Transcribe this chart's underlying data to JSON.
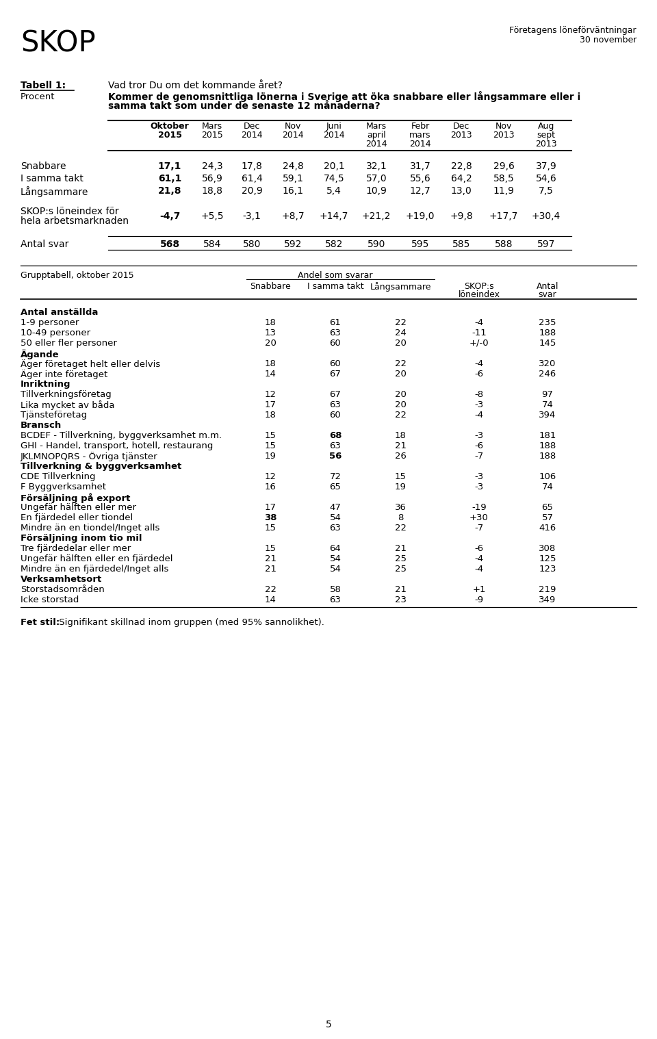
{
  "title_left": "SKOP",
  "title_right_line1": "Företagens löneförväntningar",
  "title_right_line2": "30 november",
  "tabell_label": "Tabell 1:",
  "procent_label": "Procent",
  "question_line1": "Vad tror Du om det kommande året?",
  "question_line2": "Kommer de genomsnittliga lönerna i Sverige att öka snabbare eller långsammare eller i",
  "question_line3": "samma takt som under de senaste 12 månaderna?",
  "row_labels": [
    "Snabbare",
    "I samma takt",
    "Långsammare"
  ],
  "table1_data": [
    [
      "17,1",
      "24,3",
      "17,8",
      "24,8",
      "20,1",
      "32,1",
      "31,7",
      "22,8",
      "29,6",
      "37,9"
    ],
    [
      "61,1",
      "56,9",
      "61,4",
      "59,1",
      "74,5",
      "57,0",
      "55,6",
      "64,2",
      "58,5",
      "54,6"
    ],
    [
      "21,8",
      "18,8",
      "20,9",
      "16,1",
      "5,4",
      "10,9",
      "12,7",
      "13,0",
      "11,9",
      "7,5"
    ]
  ],
  "skop_label": "SKOP:s löneindex för",
  "skop_label2": "hela arbetsmarknaden",
  "skop_values": [
    "-4,7",
    "+5,5",
    "-3,1",
    "+8,7",
    "+14,7",
    "+21,2",
    "+19,0",
    "+9,8",
    "+17,7",
    "+30,4"
  ],
  "antal_label": "Antal svar",
  "antal_values": [
    "568",
    "584",
    "580",
    "592",
    "582",
    "590",
    "595",
    "585",
    "588",
    "597"
  ],
  "grupptabell_header": "Grupptabell, oktober 2015",
  "andel_label": "Andel som svarar",
  "col2_subheaders": [
    "Snabbare",
    "I samma takt",
    "Långsammare"
  ],
  "col2_right": [
    "SKOP:s\nlöneindex",
    "Antal\nsvar"
  ],
  "group_sections": [
    {
      "section_title": "Antal anställda",
      "rows": [
        {
          "label": "1-9 personer",
          "cols": [
            "18",
            "61",
            "22",
            "-4",
            "235"
          ],
          "bold_cols": []
        },
        {
          "label": "10-49 personer",
          "cols": [
            "13",
            "63",
            "24",
            "-11",
            "188"
          ],
          "bold_cols": []
        },
        {
          "label": "50 eller fler personer",
          "cols": [
            "20",
            "60",
            "20",
            "+/-0",
            "145"
          ],
          "bold_cols": []
        }
      ]
    },
    {
      "section_title": "Ägande",
      "rows": [
        {
          "label": "Äger företaget helt eller delvis",
          "cols": [
            "18",
            "60",
            "22",
            "-4",
            "320"
          ],
          "bold_cols": []
        },
        {
          "label": "Äger inte företaget",
          "cols": [
            "14",
            "67",
            "20",
            "-6",
            "246"
          ],
          "bold_cols": []
        }
      ]
    },
    {
      "section_title": "Inriktning",
      "rows": [
        {
          "label": "Tillverkningsföretag",
          "cols": [
            "12",
            "67",
            "20",
            "-8",
            "97"
          ],
          "bold_cols": []
        },
        {
          "label": "Lika mycket av båda",
          "cols": [
            "17",
            "63",
            "20",
            "-3",
            "74"
          ],
          "bold_cols": []
        },
        {
          "label": "Tjänsteföretag",
          "cols": [
            "18",
            "60",
            "22",
            "-4",
            "394"
          ],
          "bold_cols": []
        }
      ]
    },
    {
      "section_title": "Bransch",
      "rows": [
        {
          "label": "BCDEF - Tillverkning, byggverksamhet m.m.",
          "cols": [
            "15",
            "68",
            "18",
            "-3",
            "181"
          ],
          "bold_cols": [
            1
          ]
        },
        {
          "label": "GHI - Handel, transport, hotell, restaurang",
          "cols": [
            "15",
            "63",
            "21",
            "-6",
            "188"
          ],
          "bold_cols": []
        },
        {
          "label": "JKLMNOPQRS - Övriga tjänster",
          "cols": [
            "19",
            "56",
            "26",
            "-7",
            "188"
          ],
          "bold_cols": [
            1
          ]
        }
      ]
    },
    {
      "section_title": "Tillverkning & byggverksamhet",
      "rows": [
        {
          "label": "CDE Tillverkning",
          "cols": [
            "12",
            "72",
            "15",
            "-3",
            "106"
          ],
          "bold_cols": []
        },
        {
          "label": "F Byggverksamhet",
          "cols": [
            "16",
            "65",
            "19",
            "-3",
            "74"
          ],
          "bold_cols": []
        }
      ]
    },
    {
      "section_title": "Försäljning på export",
      "rows": [
        {
          "label": "Ungefär hälften eller mer",
          "cols": [
            "17",
            "47",
            "36",
            "-19",
            "65"
          ],
          "bold_cols": []
        },
        {
          "label": "En fjärdedel eller tiondel",
          "cols": [
            "38",
            "54",
            "8",
            "+30",
            "57"
          ],
          "bold_cols": [
            0
          ]
        },
        {
          "label": "Mindre än en tiondel/Inget alls",
          "cols": [
            "15",
            "63",
            "22",
            "-7",
            "416"
          ],
          "bold_cols": []
        }
      ]
    },
    {
      "section_title": "Försäljning inom tio mil",
      "rows": [
        {
          "label": "Tre fjärdedelar eller mer",
          "cols": [
            "15",
            "64",
            "21",
            "-6",
            "308"
          ],
          "bold_cols": []
        },
        {
          "label": "Ungefär hälften eller en fjärdedel",
          "cols": [
            "21",
            "54",
            "25",
            "-4",
            "125"
          ],
          "bold_cols": []
        },
        {
          "label": "Mindre än en fjärdedel/Inget alls",
          "cols": [
            "21",
            "54",
            "25",
            "-4",
            "123"
          ],
          "bold_cols": []
        }
      ]
    },
    {
      "section_title": "Verksamhetsort",
      "rows": [
        {
          "label": "Storstadsområden",
          "cols": [
            "22",
            "58",
            "21",
            "+1",
            "219"
          ],
          "bold_cols": []
        },
        {
          "label": "Icke storstad",
          "cols": [
            "14",
            "63",
            "23",
            "-9",
            "349"
          ],
          "bold_cols": []
        }
      ]
    }
  ],
  "footnote_bold": "Fet stil:",
  "footnote_normal": " Signifikant skillnad inom gruppen (med 95% sannolikhet).",
  "page_number": "5"
}
